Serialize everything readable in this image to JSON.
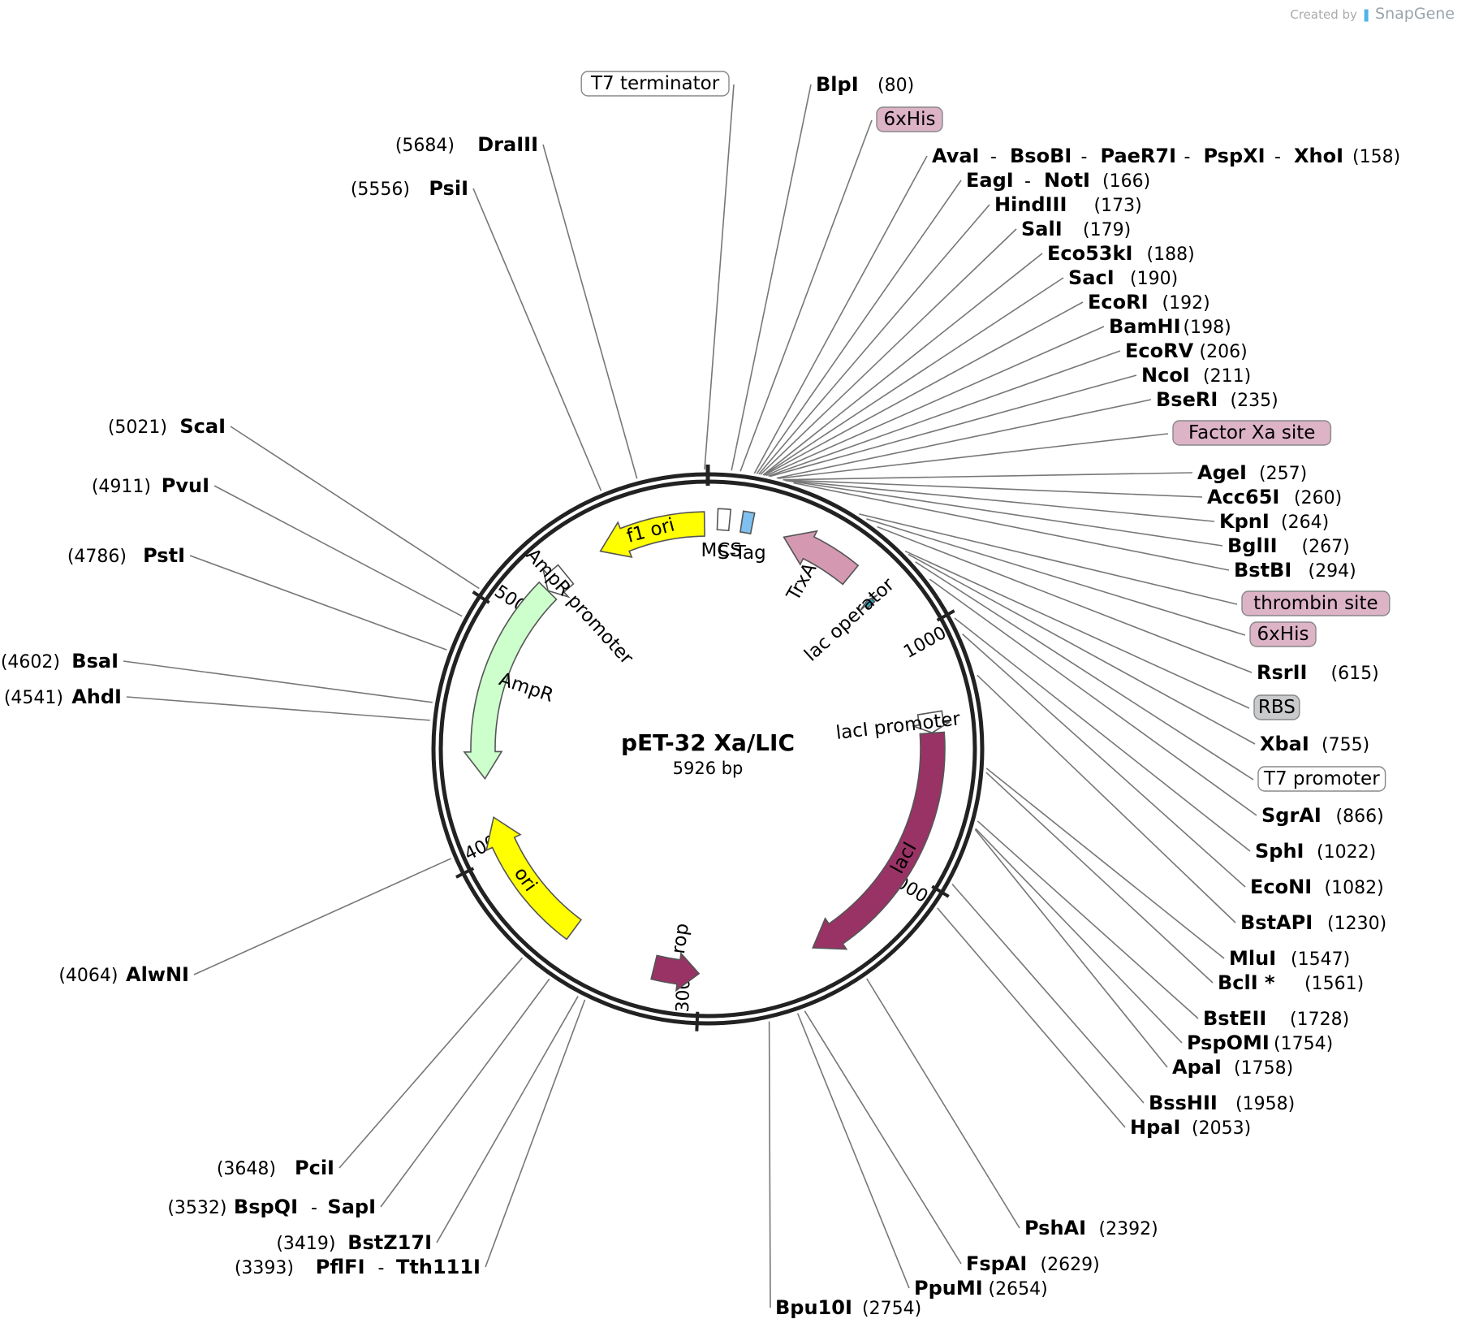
{
  "credit": {
    "prefix": "Created by",
    "brand": "SnapGene"
  },
  "plasmid": {
    "name": "pET-32 Xa/LIC",
    "length": "5926 bp"
  },
  "ticks": [
    "1000",
    "2000",
    "3000",
    "4000",
    "5000"
  ],
  "sites_right": [
    {
      "name": "BlpI",
      "pos": "(80)",
      "ring": 80
    },
    {
      "box": "6xHis",
      "ring": 110
    },
    {
      "name": "AvaI - BsoBI - PaeR7I - PspXI - XhoI",
      "parts": [
        "AvaI",
        "BsoBI",
        "PaeR7I",
        "PspXI",
        "XhoI"
      ],
      "pos": "(158)",
      "ring": 158
    },
    {
      "name": "EagI - NotI",
      "parts": [
        "EagI",
        "NotI"
      ],
      "pos": "(166)",
      "ring": 166
    },
    {
      "name": "HindIII",
      "pos": "(173)",
      "ring": 173
    },
    {
      "name": "SalI",
      "pos": "(179)",
      "ring": 179
    },
    {
      "name": "Eco53kI",
      "pos": "(188)",
      "ring": 188
    },
    {
      "name": "SacI",
      "pos": "(190)",
      "ring": 190
    },
    {
      "name": "EcoRI",
      "pos": "(192)",
      "ring": 192
    },
    {
      "name": "BamHI",
      "pos": "(198)",
      "ring": 198
    },
    {
      "name": "EcoRV",
      "pos": "(206)",
      "ring": 206
    },
    {
      "name": "NcoI",
      "pos": "(211)",
      "ring": 211
    },
    {
      "name": "BseRI",
      "pos": "(235)",
      "ring": 235
    },
    {
      "box": "Factor Xa site",
      "ring": 240
    },
    {
      "name": "AgeI",
      "pos": "(257)",
      "ring": 257
    },
    {
      "name": "Acc65I",
      "pos": "(260)",
      "ring": 260
    },
    {
      "name": "KpnI",
      "pos": "(264)",
      "ring": 264
    },
    {
      "name": "BglII",
      "pos": "(267)",
      "ring": 267
    },
    {
      "name": "BstBI",
      "pos": "(294)",
      "ring": 294
    },
    {
      "box": "thrombin site",
      "ring": 540
    },
    {
      "box": "6xHis",
      "ring": 570
    },
    {
      "name": "RsrII",
      "pos": "(615)",
      "ring": 615
    },
    {
      "box": "RBS",
      "ring": 740
    },
    {
      "name": "XbaI",
      "pos": "(755)",
      "ring": 755
    },
    {
      "box": "T7 promoter",
      "ring": 790
    },
    {
      "name": "SgrAI",
      "pos": "(866)",
      "ring": 866
    },
    {
      "name": "SphI",
      "pos": "(1022)",
      "ring": 1022
    },
    {
      "name": "EcoNI",
      "pos": "(1082)",
      "ring": 1082
    },
    {
      "name": "BstAPI",
      "pos": "(1230)",
      "ring": 1230
    },
    {
      "name": "MluI",
      "pos": "(1547)",
      "ring": 1547
    },
    {
      "name": "BclI *",
      "pos": "(1561)",
      "ring": 1561,
      "grey": true
    },
    {
      "name": "BstEII",
      "pos": "(1728)",
      "ring": 1728
    },
    {
      "name": "PspOMI",
      "pos": "(1754)",
      "ring": 1754
    },
    {
      "name": "ApaI",
      "pos": "(1758)",
      "ring": 1758
    },
    {
      "name": "BssHII",
      "pos": "(1958)",
      "ring": 1958
    },
    {
      "name": "HpaI",
      "pos": "(2053)",
      "ring": 2053
    },
    {
      "name": "PshAI",
      "pos": "(2392)",
      "ring": 2392
    },
    {
      "name": "FspAI",
      "pos": "(2629)",
      "ring": 2629
    },
    {
      "name": "PpuMI",
      "pos": "(2654)",
      "ring": 2654
    },
    {
      "name": "Bpu10I",
      "pos": "(2754)",
      "ring": 2754
    }
  ],
  "sites_left": [
    {
      "box": "T7 terminator",
      "ring": 5915
    },
    {
      "name": "DraIII",
      "pos": "(5684)",
      "ring": 5684
    },
    {
      "name": "PsiI",
      "pos": "(5556)",
      "ring": 5556
    },
    {
      "name": "ScaI",
      "pos": "(5021)",
      "ring": 5021
    },
    {
      "name": "PvuI",
      "pos": "(4911)",
      "ring": 4911
    },
    {
      "name": "PstI",
      "pos": "(4786)",
      "ring": 4786
    },
    {
      "name": "BsaI",
      "pos": "(4602)",
      "ring": 4602
    },
    {
      "name": "AhdI",
      "pos": "(4541)",
      "ring": 4541
    },
    {
      "name": "AlwNI",
      "pos": "(4064)",
      "ring": 4064
    },
    {
      "name": "PciI",
      "pos": "(3648)",
      "ring": 3648
    },
    {
      "name": "BspQI - SapI",
      "parts": [
        "BspQI",
        "SapI"
      ],
      "pos": "(3532)",
      "ring": 3532
    },
    {
      "name": "BstZ17I",
      "pos": "(3419)",
      "ring": 3419
    },
    {
      "name": "PflFI - Tth111I",
      "parts": [
        "PflFI",
        "Tth111I"
      ],
      "pos": "(3393)",
      "ring": 3393
    }
  ],
  "features": [
    {
      "name": "f1 ori",
      "start": 5456,
      "end": 5912,
      "dir": "ccw",
      "color": "#ffff00",
      "label_inside": true
    },
    {
      "name": "AmpR promoter",
      "start": 5180,
      "end": 5281,
      "dir": "ccw",
      "color": "#ffffff"
    },
    {
      "name": "AmpR",
      "start": 4319,
      "end": 5179,
      "dir": "ccw",
      "color": "#ccffcc"
    },
    {
      "name": "ori",
      "start": 3565,
      "end": 4153,
      "dir": "cw",
      "color": "#ffff00",
      "label_inside": true
    },
    {
      "name": "rop",
      "start": 3000,
      "end": 3191,
      "dir": "ccw",
      "color": "#993366"
    },
    {
      "name": "lacI",
      "start": 1415,
      "end": 2505,
      "dir": "cw",
      "color": "#993366",
      "label_inside": true
    },
    {
      "name": "lacI promoter",
      "start": 1330,
      "end": 1414,
      "dir": "cw",
      "color": "#ffffff"
    },
    {
      "name": "lac operator",
      "start": 775,
      "end": 800,
      "dir": "ccw",
      "color": "#2aa4c4"
    },
    {
      "name": "TrxA",
      "start": 325,
      "end": 648,
      "dir": "ccw",
      "color": "#d499b1"
    },
    {
      "name": "S-Tag",
      "start": 140,
      "end": 185,
      "dir": "none",
      "color": "#7ec0f0"
    },
    {
      "name": "MCS",
      "start": 40,
      "end": 90,
      "dir": "none",
      "color": "#ffffff"
    }
  ]
}
